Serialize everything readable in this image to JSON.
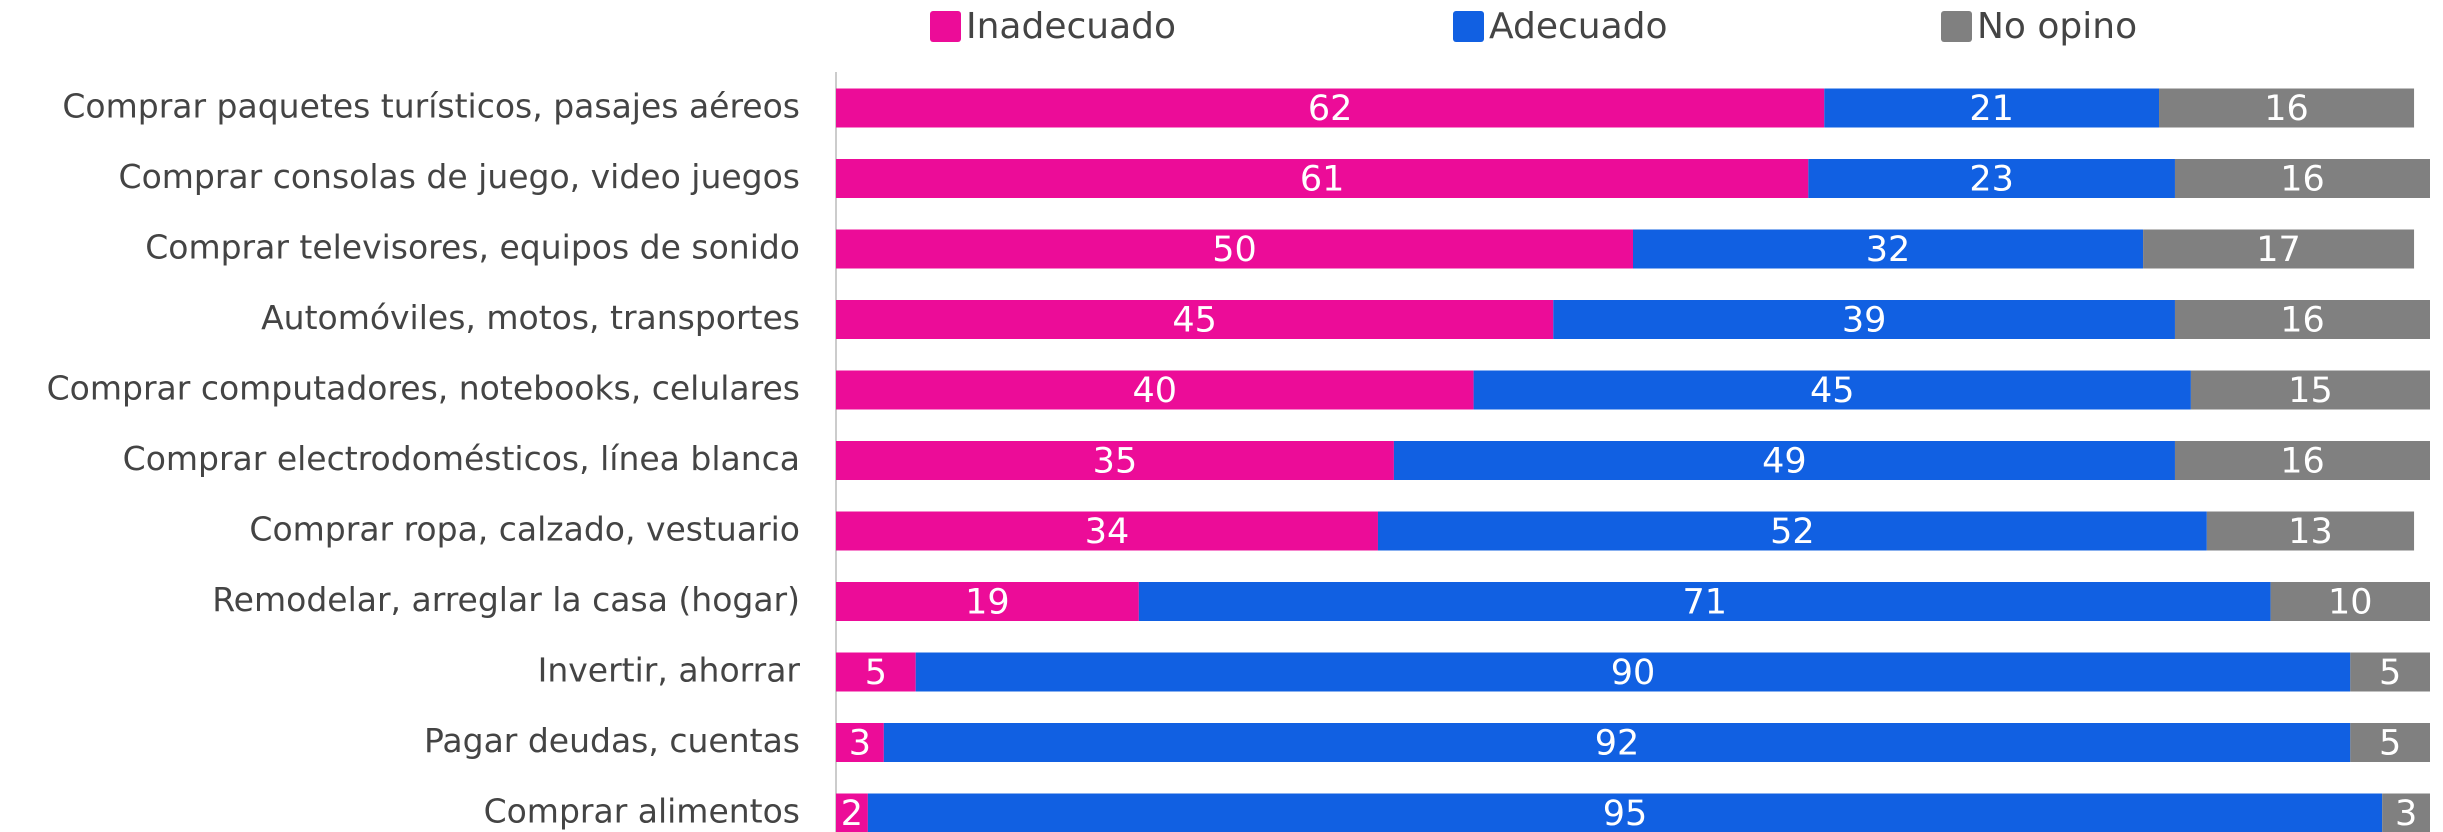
{
  "chart_data": {
    "type": "stacked-barh",
    "categories": [
      "Comprar paquetes turísticos, pasajes aéreos",
      "Comprar consolas de juego, video juegos",
      "Comprar televisores, equipos de sonido",
      "Automóviles, motos, transportes",
      "Comprar computadores, notebooks, celulares",
      "Comprar electrodomésticos, línea blanca",
      "Comprar ropa, calzado, vestuario",
      "Remodelar, arreglar la casa (hogar)",
      "Invertir, ahorrar",
      "Pagar deudas, cuentas",
      "Comprar alimentos"
    ],
    "series": [
      {
        "name": "Inadecuado",
        "color": "#ec0c98",
        "values": [
          62,
          61,
          50,
          45,
          40,
          35,
          34,
          19,
          5,
          3,
          2
        ]
      },
      {
        "name": "Adecuado",
        "color": "#1160e2",
        "values": [
          21,
          23,
          32,
          39,
          45,
          49,
          52,
          71,
          90,
          92,
          95
        ]
      },
      {
        "name": "No opino",
        "color": "#808080",
        "values": [
          16,
          16,
          17,
          16,
          15,
          16,
          13,
          10,
          5,
          5,
          3
        ]
      }
    ],
    "xlim": [
      0,
      100
    ],
    "legend": "top"
  }
}
